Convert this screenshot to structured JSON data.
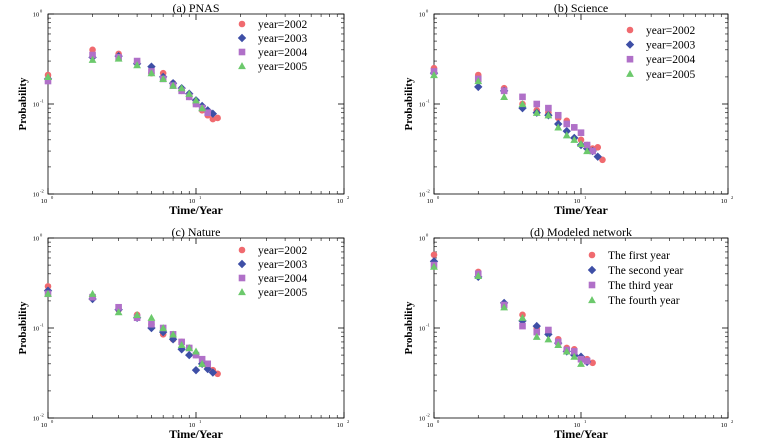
{
  "chart_data": [
    {
      "type": "scatter",
      "title": "(a) PNAS",
      "xlabel": "Time/Year",
      "ylabel": "Probability",
      "xscale": "log",
      "yscale": "log",
      "xlim": [
        1,
        100
      ],
      "ylim": [
        0.01,
        1
      ],
      "xtick_labels": [
        "10",
        "10",
        "10"
      ],
      "xtick_exps": [
        "0",
        "1",
        "2"
      ],
      "ytick_labels": [
        "10",
        "10",
        "10"
      ],
      "ytick_exps": [
        "-2",
        "-1",
        "0"
      ],
      "legend_position": "top-right",
      "series": [
        {
          "name": "year=2002",
          "marker": "circle",
          "color": "#f06a6f",
          "x": [
            1,
            2,
            3,
            4,
            5,
            6,
            7,
            8,
            9,
            10,
            11,
            12,
            13,
            14
          ],
          "y": [
            0.21,
            0.4,
            0.36,
            0.29,
            0.22,
            0.22,
            0.17,
            0.14,
            0.12,
            0.1,
            0.085,
            0.075,
            0.068,
            0.07
          ]
        },
        {
          "name": "year=2003",
          "marker": "diamond",
          "color": "#3e4fa6",
          "x": [
            1,
            2,
            3,
            4,
            5,
            6,
            7,
            8,
            9,
            10,
            11,
            12,
            13
          ],
          "y": [
            0.19,
            0.33,
            0.34,
            0.28,
            0.26,
            0.2,
            0.17,
            0.15,
            0.13,
            0.11,
            0.095,
            0.085,
            0.078
          ]
        },
        {
          "name": "year=2004",
          "marker": "square",
          "color": "#b070c8",
          "x": [
            1,
            2,
            3,
            4,
            5,
            6,
            7,
            8,
            9,
            10,
            11,
            12
          ],
          "y": [
            0.18,
            0.35,
            0.33,
            0.3,
            0.23,
            0.19,
            0.16,
            0.14,
            0.12,
            0.1,
            0.09,
            0.08
          ]
        },
        {
          "name": "year=2005",
          "marker": "triangle",
          "color": "#6cc96c",
          "x": [
            1,
            2,
            3,
            4,
            5,
            6,
            7,
            8,
            9,
            10,
            11
          ],
          "y": [
            0.2,
            0.31,
            0.32,
            0.27,
            0.22,
            0.19,
            0.16,
            0.15,
            0.13,
            0.11,
            0.09
          ]
        }
      ]
    },
    {
      "type": "scatter",
      "title": "(b) Science",
      "xlabel": "Time/Year",
      "ylabel": "Probability",
      "xscale": "log",
      "yscale": "log",
      "xlim": [
        1,
        100
      ],
      "ylim": [
        0.01,
        1
      ],
      "xtick_labels": [
        "10",
        "10",
        "10"
      ],
      "xtick_exps": [
        "0",
        "1",
        "2"
      ],
      "ytick_labels": [
        "10",
        "10",
        "10"
      ],
      "ytick_exps": [
        "-2",
        "-1",
        "0"
      ],
      "legend_position": "top-right",
      "series": [
        {
          "name": "year=2002",
          "marker": "circle",
          "color": "#f06a6f",
          "x": [
            1,
            2,
            3,
            4,
            5,
            6,
            7,
            8,
            9,
            10,
            11,
            12,
            13,
            14
          ],
          "y": [
            0.25,
            0.21,
            0.15,
            0.1,
            0.085,
            0.08,
            0.07,
            0.065,
            0.055,
            0.04,
            0.035,
            0.032,
            0.033,
            0.024
          ]
        },
        {
          "name": "year=2003",
          "marker": "diamond",
          "color": "#3e4fa6",
          "x": [
            1,
            2,
            3,
            4,
            5,
            6,
            7,
            8,
            9,
            10,
            11,
            12,
            13
          ],
          "y": [
            0.22,
            0.155,
            0.14,
            0.09,
            0.08,
            0.075,
            0.06,
            0.05,
            0.042,
            0.035,
            0.032,
            0.03,
            0.026
          ]
        },
        {
          "name": "year=2004",
          "marker": "square",
          "color": "#b070c8",
          "x": [
            1,
            2,
            3,
            4,
            5,
            6,
            7,
            8,
            9,
            10,
            11,
            12
          ],
          "y": [
            0.23,
            0.19,
            0.14,
            0.12,
            0.1,
            0.09,
            0.075,
            0.06,
            0.055,
            0.048,
            0.035,
            0.03
          ]
        },
        {
          "name": "year=2005",
          "marker": "triangle",
          "color": "#6cc96c",
          "x": [
            1,
            2,
            3,
            4,
            5,
            6,
            7,
            8,
            9,
            10,
            11
          ],
          "y": [
            0.21,
            0.18,
            0.12,
            0.1,
            0.08,
            0.075,
            0.055,
            0.045,
            0.04,
            0.036,
            0.03
          ]
        }
      ]
    },
    {
      "type": "scatter",
      "title": "(c) Nature",
      "xlabel": "Time/Year",
      "ylabel": "Probability",
      "xscale": "log",
      "yscale": "log",
      "xlim": [
        1,
        100
      ],
      "ylim": [
        0.01,
        1
      ],
      "xtick_labels": [
        "10",
        "10",
        "10"
      ],
      "xtick_exps": [
        "0",
        "1",
        "2"
      ],
      "ytick_labels": [
        "10",
        "10",
        "10"
      ],
      "ytick_exps": [
        "-2",
        "-1",
        "0"
      ],
      "legend_position": "top-right",
      "series": [
        {
          "name": "year=2002",
          "marker": "circle",
          "color": "#f06a6f",
          "x": [
            1,
            2,
            3,
            4,
            5,
            6,
            7,
            8,
            9,
            10,
            11,
            12,
            13,
            14
          ],
          "y": [
            0.29,
            0.22,
            0.16,
            0.14,
            0.11,
            0.085,
            0.075,
            0.07,
            0.06,
            0.05,
            0.04,
            0.036,
            0.034,
            0.031
          ]
        },
        {
          "name": "year=2003",
          "marker": "diamond",
          "color": "#3e4fa6",
          "x": [
            1,
            2,
            3,
            4,
            5,
            6,
            7,
            8,
            9,
            10,
            11,
            12,
            13
          ],
          "y": [
            0.26,
            0.21,
            0.16,
            0.13,
            0.1,
            0.09,
            0.075,
            0.058,
            0.05,
            0.034,
            0.04,
            0.035,
            0.032
          ]
        },
        {
          "name": "year=2004",
          "marker": "square",
          "color": "#b070c8",
          "x": [
            1,
            2,
            3,
            4,
            5,
            6,
            7,
            8,
            9,
            10,
            11,
            12
          ],
          "y": [
            0.24,
            0.22,
            0.17,
            0.13,
            0.11,
            0.1,
            0.085,
            0.07,
            0.06,
            0.05,
            0.045,
            0.04
          ]
        },
        {
          "name": "year=2005",
          "marker": "triangle",
          "color": "#6cc96c",
          "x": [
            1,
            2,
            3,
            4,
            5,
            6,
            7,
            8,
            9,
            10,
            11
          ],
          "y": [
            0.24,
            0.24,
            0.15,
            0.14,
            0.13,
            0.1,
            0.085,
            0.065,
            0.06,
            0.055,
            0.04
          ]
        }
      ]
    },
    {
      "type": "scatter",
      "title": "(d) Modeled network",
      "xlabel": "Time/Year",
      "ylabel": "Probability",
      "xscale": "log",
      "yscale": "log",
      "xlim": [
        1,
        100
      ],
      "ylim": [
        0.01,
        1
      ],
      "xtick_labels": [
        "10",
        "10",
        "10"
      ],
      "xtick_exps": [
        "0",
        "1",
        "2"
      ],
      "ytick_labels": [
        "10",
        "10",
        "10"
      ],
      "ytick_exps": [
        "-2",
        "-1",
        "0"
      ],
      "legend_position": "top-right",
      "series": [
        {
          "name": "The first year",
          "marker": "circle",
          "color": "#f06a6f",
          "x": [
            1,
            2,
            3,
            4,
            5,
            6,
            7,
            8,
            9,
            10,
            11,
            12
          ],
          "y": [
            0.65,
            0.42,
            0.18,
            0.14,
            0.1,
            0.09,
            0.075,
            0.06,
            0.058,
            0.045,
            0.045,
            0.041
          ]
        },
        {
          "name": "The second year",
          "marker": "diamond",
          "color": "#3e4fa6",
          "x": [
            1,
            2,
            3,
            4,
            5,
            6,
            7,
            8,
            9,
            10,
            11
          ],
          "y": [
            0.55,
            0.37,
            0.19,
            0.12,
            0.105,
            0.085,
            0.068,
            0.055,
            0.05,
            0.048,
            0.042
          ]
        },
        {
          "name": "The third year",
          "marker": "square",
          "color": "#b070c8",
          "x": [
            1,
            2,
            3,
            4,
            5,
            6,
            7,
            8,
            9,
            10,
            11
          ],
          "y": [
            0.5,
            0.4,
            0.18,
            0.105,
            0.09,
            0.095,
            0.07,
            0.057,
            0.055,
            0.045,
            0.043
          ]
        },
        {
          "name": "The fourth year",
          "marker": "triangle",
          "color": "#6cc96c",
          "x": [
            1,
            2,
            3,
            4,
            5,
            6,
            7,
            8,
            9,
            10
          ],
          "y": [
            0.48,
            0.38,
            0.17,
            0.13,
            0.08,
            0.075,
            0.065,
            0.055,
            0.048,
            0.04
          ]
        }
      ]
    }
  ]
}
